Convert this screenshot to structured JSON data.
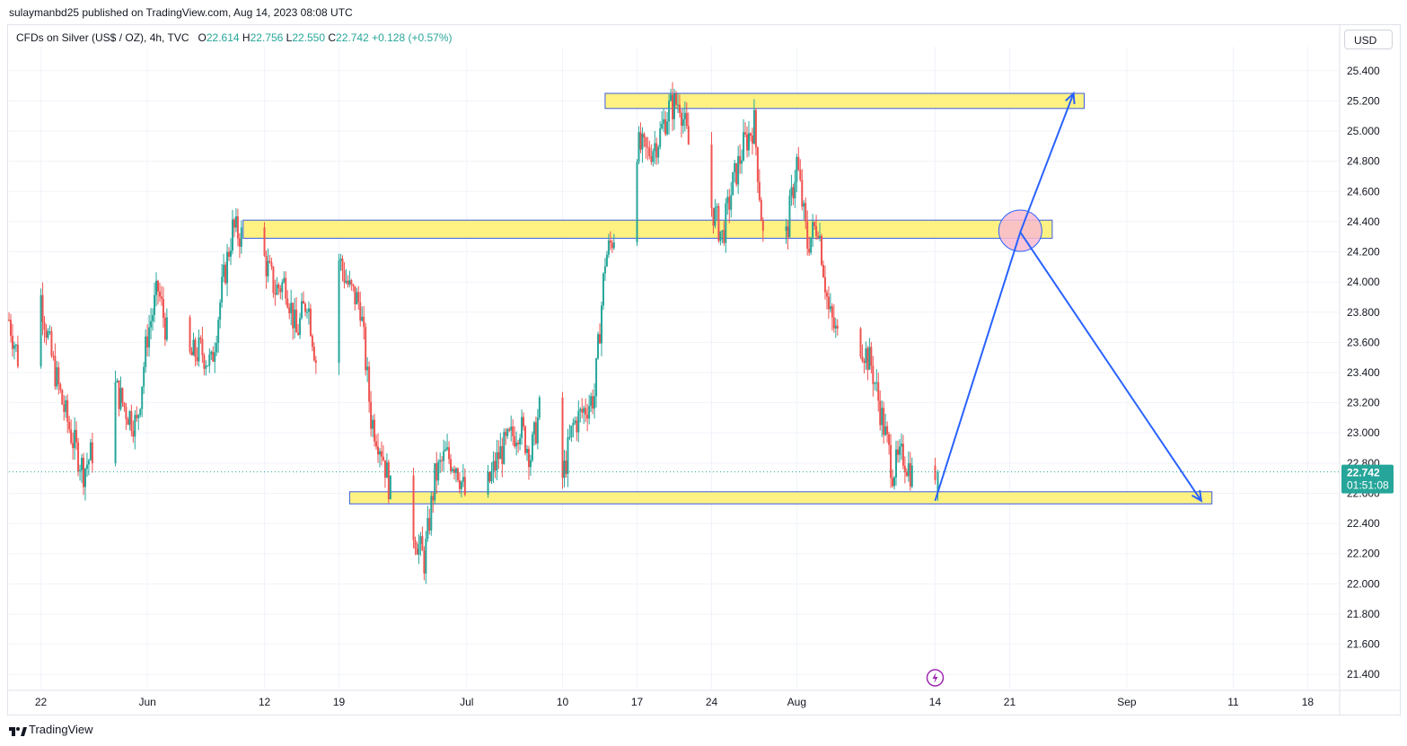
{
  "header": {
    "publisher_text": "sulaymanbd25 published on TradingView.com, Aug 14, 2023 08:08 UTC"
  },
  "legend": {
    "symbol": "CFDs on Silver (US$ / OZ), 4h, TVC",
    "open_label": "O",
    "open": "22.614",
    "high_label": "H",
    "high": "22.756",
    "low_label": "L",
    "low": "22.550",
    "close_label": "C",
    "close": "22.742",
    "change": "+0.128 (+0.57%)"
  },
  "currency_button": "USD",
  "price_badge": {
    "price": "22.742",
    "countdown": "01:51:08"
  },
  "footer": {
    "logo_text": "TradingView"
  },
  "colors": {
    "up": "#26a69a",
    "down": "#ef5350",
    "zone_fill": "#fff176",
    "zone_border": "#3b5bdb",
    "arrow": "#2962ff",
    "circle_fill": "#f8bbd0",
    "badge": "#26a69a",
    "alert_icon": "#9c27b0"
  },
  "chart_data": {
    "type": "candlestick",
    "interval": "4h",
    "y_axis": {
      "range": [
        21.3,
        25.5
      ],
      "ticks": [
        "21.400",
        "21.600",
        "21.800",
        "22.000",
        "22.200",
        "22.400",
        "22.600",
        "22.800",
        "23.000",
        "23.200",
        "23.400",
        "23.600",
        "23.800",
        "24.000",
        "24.200",
        "24.400",
        "24.600",
        "24.800",
        "25.000",
        "25.200",
        "25.400"
      ]
    },
    "x_axis": {
      "start_date": "2023-05-19",
      "end_date": "2023-09-21",
      "ticks": [
        {
          "label": "22",
          "date": "2023-05-22"
        },
        {
          "label": "Jun",
          "date": "2023-06-01"
        },
        {
          "label": "12",
          "date": "2023-06-12"
        },
        {
          "label": "19",
          "date": "2023-06-19"
        },
        {
          "label": "Jul",
          "date": "2023-07-01"
        },
        {
          "label": "10",
          "date": "2023-07-10"
        },
        {
          "label": "17",
          "date": "2023-07-17"
        },
        {
          "label": "24",
          "date": "2023-07-24"
        },
        {
          "label": "Aug",
          "date": "2023-08-01"
        },
        {
          "label": "14",
          "date": "2023-08-14"
        },
        {
          "label": "21",
          "date": "2023-08-21"
        },
        {
          "label": "Sep",
          "date": "2023-09-01"
        },
        {
          "label": "11",
          "date": "2023-09-11"
        },
        {
          "label": "18",
          "date": "2023-09-18"
        }
      ]
    },
    "last_price": 22.742,
    "price_path": [
      [
        "2023-05-19",
        23.75
      ],
      [
        "2023-05-20",
        23.45
      ],
      [
        "2023-05-22",
        23.9
      ],
      [
        "2023-05-23",
        23.5
      ],
      [
        "2023-05-24",
        23.2
      ],
      [
        "2023-05-25",
        22.95
      ],
      [
        "2023-05-26",
        22.75
      ],
      [
        "2023-05-27",
        22.9
      ],
      [
        "2023-05-29",
        23.3
      ],
      [
        "2023-05-30",
        23.15
      ],
      [
        "2023-05-31",
        23.05
      ],
      [
        "2023-06-01",
        23.65
      ],
      [
        "2023-06-02",
        23.95
      ],
      [
        "2023-06-03",
        23.6
      ],
      [
        "2023-06-05",
        23.5
      ],
      [
        "2023-06-06",
        23.55
      ],
      [
        "2023-06-07",
        23.45
      ],
      [
        "2023-06-08",
        23.95
      ],
      [
        "2023-06-09",
        24.35
      ],
      [
        "2023-06-10",
        24.3
      ],
      [
        "2023-06-11",
        24.5
      ],
      [
        "2023-06-12",
        24.15
      ],
      [
        "2023-06-13",
        23.95
      ],
      [
        "2023-06-14",
        24.0
      ],
      [
        "2023-06-15",
        23.65
      ],
      [
        "2023-06-16",
        23.9
      ],
      [
        "2023-06-17",
        23.4
      ],
      [
        "2023-06-18",
        23.95
      ],
      [
        "2023-06-19",
        24.15
      ],
      [
        "2023-06-20",
        23.95
      ],
      [
        "2023-06-21",
        23.85
      ],
      [
        "2023-06-22",
        23.1
      ],
      [
        "2023-06-23",
        22.9
      ],
      [
        "2023-06-24",
        22.55
      ],
      [
        "2023-06-26",
        22.35
      ],
      [
        "2023-06-27",
        22.15
      ],
      [
        "2023-06-28",
        22.7
      ],
      [
        "2023-06-29",
        22.85
      ],
      [
        "2023-06-30",
        22.8
      ],
      [
        "2023-07-01",
        22.55
      ],
      [
        "2023-07-02",
        22.4
      ],
      [
        "2023-07-03",
        22.65
      ],
      [
        "2023-07-04",
        22.85
      ],
      [
        "2023-07-05",
        22.95
      ],
      [
        "2023-07-06",
        23.05
      ],
      [
        "2023-07-07",
        22.85
      ],
      [
        "2023-07-08",
        23.2
      ],
      [
        "2023-07-09",
        22.8
      ],
      [
        "2023-07-10",
        22.7
      ],
      [
        "2023-07-11",
        23.05
      ],
      [
        "2023-07-12",
        23.15
      ],
      [
        "2023-07-13",
        23.25
      ],
      [
        "2023-07-14",
        24.15
      ],
      [
        "2023-07-15",
        24.35
      ],
      [
        "2023-07-16",
        24.65
      ],
      [
        "2023-07-17",
        24.9
      ],
      [
        "2023-07-18",
        24.85
      ],
      [
        "2023-07-19",
        24.95
      ],
      [
        "2023-07-20",
        25.15
      ],
      [
        "2023-07-21",
        25.2
      ],
      [
        "2023-07-22",
        24.85
      ],
      [
        "2023-07-23",
        24.6
      ],
      [
        "2023-07-24",
        24.5
      ],
      [
        "2023-07-25",
        24.3
      ],
      [
        "2023-07-26",
        24.65
      ],
      [
        "2023-07-27",
        24.9
      ],
      [
        "2023-07-28",
        25.05
      ],
      [
        "2023-07-29",
        24.15
      ],
      [
        "2023-07-30",
        24.05
      ],
      [
        "2023-07-31",
        24.3
      ],
      [
        "2023-08-01",
        24.8
      ],
      [
        "2023-08-02",
        24.25
      ],
      [
        "2023-08-03",
        24.4
      ],
      [
        "2023-08-04",
        23.8
      ],
      [
        "2023-08-05",
        23.6
      ],
      [
        "2023-08-06",
        23.55
      ],
      [
        "2023-08-07",
        23.6
      ],
      [
        "2023-08-08",
        23.45
      ],
      [
        "2023-08-09",
        23.1
      ],
      [
        "2023-08-10",
        22.75
      ],
      [
        "2023-08-11",
        22.85
      ],
      [
        "2023-08-12",
        22.7
      ],
      [
        "2023-08-13",
        22.65
      ],
      [
        "2023-08-14",
        22.74
      ]
    ],
    "annotations": {
      "zones": [
        {
          "name": "upper-resistance-zone",
          "date_from": "2023-07-14",
          "date_to": "2023-08-28",
          "price_low": 25.15,
          "price_high": 25.25
        },
        {
          "name": "middle-zone",
          "date_from": "2023-06-10",
          "date_to": "2023-08-25",
          "price_low": 24.29,
          "price_high": 24.41
        },
        {
          "name": "lower-support-zone",
          "date_from": "2023-06-20",
          "date_to": "2023-09-09",
          "price_low": 22.53,
          "price_high": 22.61
        }
      ],
      "projection_path": [
        {
          "date": "2023-08-14",
          "price": 22.55
        },
        {
          "date": "2023-08-22",
          "price": 24.33
        },
        {
          "date": "2023-09-08",
          "price": 22.55
        }
      ],
      "upper_target_arrow": {
        "from": {
          "date": "2023-08-22",
          "price": 24.33
        },
        "to": {
          "date": "2023-08-27",
          "price": 25.25
        }
      },
      "highlight_circle": {
        "date": "2023-08-22",
        "price": 24.34
      }
    }
  }
}
